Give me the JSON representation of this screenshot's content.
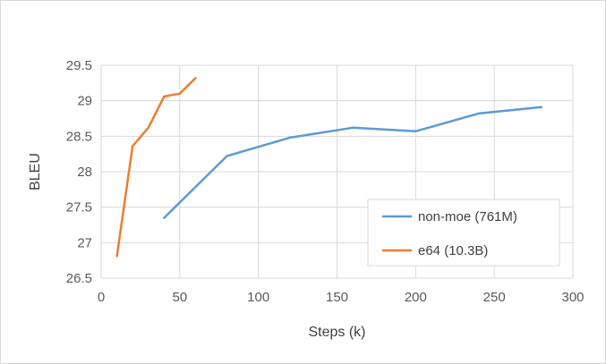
{
  "chart_data": {
    "type": "line",
    "xlabel": "Steps (k)",
    "ylabel": "BLEU",
    "xlim": [
      0,
      300
    ],
    "ylim": [
      26.5,
      29.5
    ],
    "xticks": [
      0,
      50,
      100,
      150,
      200,
      250,
      300
    ],
    "yticks": [
      26.5,
      27,
      27.5,
      28,
      28.5,
      29,
      29.5
    ],
    "xtick_labels": [
      "0",
      "50",
      "100",
      "150",
      "200",
      "250",
      "300"
    ],
    "ytick_labels": [
      "26.5",
      "27",
      "27.5",
      "28",
      "28.5",
      "29",
      "29.5"
    ],
    "grid": true,
    "legend_position": "bottom-right",
    "series": [
      {
        "name": "non-moe (761M)",
        "color": "#5b9bd5",
        "x": [
          40,
          80,
          120,
          160,
          200,
          240,
          280
        ],
        "y": [
          27.35,
          28.22,
          28.48,
          28.62,
          28.57,
          28.82,
          28.91
        ]
      },
      {
        "name": "e64 (10.3B)",
        "color": "#ed7d31",
        "x": [
          10,
          20,
          30,
          40,
          50,
          60
        ],
        "y": [
          26.81,
          28.36,
          28.62,
          29.06,
          29.1,
          29.32
        ]
      }
    ]
  }
}
